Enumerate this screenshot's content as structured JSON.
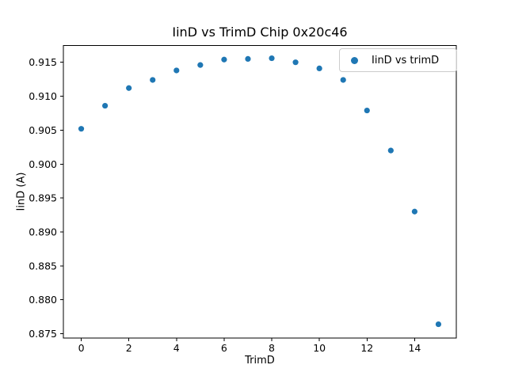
{
  "chart_data": {
    "type": "scatter",
    "title": "IinD vs TrimD Chip 0x20c46",
    "xlabel": "TrimD",
    "ylabel": "IinD (A)",
    "legend": {
      "label": "IinD vs trimD",
      "position": "upper right"
    },
    "marker_color": "#1f77b4",
    "x": [
      0,
      1,
      2,
      3,
      4,
      5,
      6,
      7,
      8,
      9,
      10,
      11,
      12,
      13,
      14,
      15
    ],
    "y": [
      0.9052,
      0.9086,
      0.9112,
      0.9124,
      0.9138,
      0.9146,
      0.9154,
      0.9155,
      0.9156,
      0.915,
      0.9141,
      0.9124,
      0.9079,
      0.902,
      0.893,
      0.8764
    ],
    "xlim": [
      -0.75,
      15.75
    ],
    "ylim": [
      0.87434,
      0.91746
    ],
    "xticks": [
      0,
      2,
      4,
      6,
      8,
      10,
      12,
      14
    ],
    "xtick_labels": [
      "0",
      "2",
      "4",
      "6",
      "8",
      "10",
      "12",
      "14"
    ],
    "yticks": [
      0.875,
      0.88,
      0.885,
      0.89,
      0.895,
      0.9,
      0.905,
      0.91,
      0.915
    ],
    "ytick_labels": [
      "0.875",
      "0.880",
      "0.885",
      "0.890",
      "0.895",
      "0.900",
      "0.905",
      "0.910",
      "0.915"
    ],
    "grid": false
  }
}
